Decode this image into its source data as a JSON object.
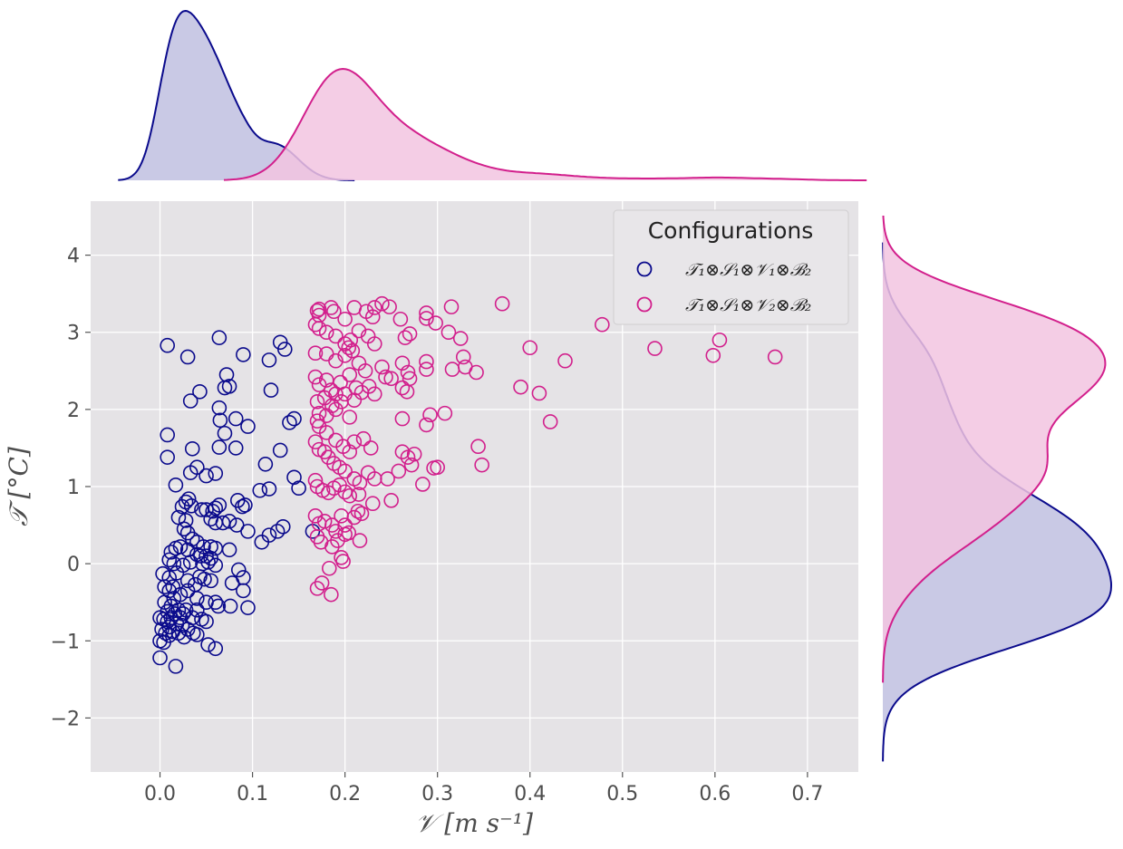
{
  "chart_data": {
    "type": "scatter",
    "xlabel": "𝒱 [m s⁻¹]",
    "ylabel": "𝒯 [°C]",
    "xlim": [
      -0.075,
      0.755
    ],
    "ylim": [
      -2.7,
      4.7
    ],
    "x_ticks": [
      0.0,
      0.1,
      0.2,
      0.3,
      0.4,
      0.5,
      0.6,
      0.7
    ],
    "x_tick_labels": [
      "0.0",
      "0.1",
      "0.2",
      "0.3",
      "0.4",
      "0.5",
      "0.6",
      "0.7"
    ],
    "y_ticks": [
      -2,
      -1,
      0,
      1,
      2,
      3,
      4
    ],
    "y_tick_labels": [
      "−2",
      "−1",
      "0",
      "1",
      "2",
      "3",
      "4"
    ],
    "grid": true,
    "legend": {
      "title": "Configurations",
      "placement": "top-right",
      "entries": [
        "𝒯₁⊗𝒮₁⊗𝒱₁⊗ℬ₂",
        "𝒯₁⊗𝒮₁⊗𝒱₂⊗ℬ₂"
      ]
    },
    "marginals": {
      "top": "kde of 𝒱 per series",
      "right": "kde of 𝒯 per series"
    },
    "series": [
      {
        "color": "#0a0a8c",
        "fill": "#bfc0e0",
        "points": [
          [
            0.008,
            2.83
          ],
          [
            0.064,
            2.93
          ],
          [
            0.03,
            2.68
          ],
          [
            0.09,
            2.71
          ],
          [
            0.13,
            2.87
          ],
          [
            0.135,
            2.78
          ],
          [
            0.118,
            2.64
          ],
          [
            0.072,
            2.45
          ],
          [
            0.07,
            2.28
          ],
          [
            0.075,
            2.3
          ],
          [
            0.043,
            2.23
          ],
          [
            0.033,
            2.11
          ],
          [
            0.12,
            2.25
          ],
          [
            0.064,
            2.02
          ],
          [
            0.065,
            1.86
          ],
          [
            0.082,
            1.88
          ],
          [
            0.14,
            1.83
          ],
          [
            0.145,
            1.88
          ],
          [
            0.008,
            1.67
          ],
          [
            0.07,
            1.69
          ],
          [
            0.095,
            1.78
          ],
          [
            0.035,
            1.49
          ],
          [
            0.064,
            1.51
          ],
          [
            0.082,
            1.5
          ],
          [
            0.13,
            1.47
          ],
          [
            0.008,
            1.38
          ],
          [
            0.04,
            1.25
          ],
          [
            0.114,
            1.29
          ],
          [
            0.033,
            1.18
          ],
          [
            0.05,
            1.14
          ],
          [
            0.06,
            1.17
          ],
          [
            0.145,
            1.12
          ],
          [
            0.15,
            0.98
          ],
          [
            0.118,
            0.97
          ],
          [
            0.108,
            0.95
          ],
          [
            0.017,
            1.02
          ],
          [
            0.028,
            0.8
          ],
          [
            0.031,
            0.84
          ],
          [
            0.024,
            0.74
          ],
          [
            0.034,
            0.75
          ],
          [
            0.06,
            0.72
          ],
          [
            0.064,
            0.76
          ],
          [
            0.084,
            0.82
          ],
          [
            0.089,
            0.74
          ],
          [
            0.092,
            0.76
          ],
          [
            0.045,
            0.7
          ],
          [
            0.05,
            0.7
          ],
          [
            0.057,
            0.68
          ],
          [
            0.02,
            0.6
          ],
          [
            0.028,
            0.56
          ],
          [
            0.055,
            0.58
          ],
          [
            0.06,
            0.53
          ],
          [
            0.068,
            0.53
          ],
          [
            0.075,
            0.55
          ],
          [
            0.083,
            0.5
          ],
          [
            0.095,
            0.42
          ],
          [
            0.11,
            0.28
          ],
          [
            0.118,
            0.37
          ],
          [
            0.127,
            0.42
          ],
          [
            0.133,
            0.48
          ],
          [
            0.165,
            0.42
          ],
          [
            0.026,
            0.45
          ],
          [
            0.03,
            0.4
          ],
          [
            0.035,
            0.32
          ],
          [
            0.04,
            0.28
          ],
          [
            0.047,
            0.22
          ],
          [
            0.055,
            0.22
          ],
          [
            0.06,
            0.2
          ],
          [
            0.075,
            0.18
          ],
          [
            0.012,
            0.15
          ],
          [
            0.017,
            0.2
          ],
          [
            0.022,
            0.22
          ],
          [
            0.03,
            0.18
          ],
          [
            0.04,
            0.12
          ],
          [
            0.044,
            0.1
          ],
          [
            0.05,
            0.1
          ],
          [
            0.055,
            0.07
          ],
          [
            0.01,
            0.05
          ],
          [
            0.015,
            0.0
          ],
          [
            0.025,
            -0.02
          ],
          [
            0.033,
            0.02
          ],
          [
            0.046,
            0.0
          ],
          [
            0.052,
            0.02
          ],
          [
            0.06,
            -0.02
          ],
          [
            0.003,
            -0.13
          ],
          [
            0.01,
            -0.18
          ],
          [
            0.018,
            -0.12
          ],
          [
            0.03,
            -0.22
          ],
          [
            0.038,
            -0.27
          ],
          [
            0.043,
            -0.17
          ],
          [
            0.048,
            -0.2
          ],
          [
            0.055,
            -0.22
          ],
          [
            0.085,
            -0.08
          ],
          [
            0.09,
            -0.18
          ],
          [
            0.078,
            -0.25
          ],
          [
            0.09,
            -0.35
          ],
          [
            0.005,
            -0.3
          ],
          [
            0.01,
            -0.35
          ],
          [
            0.015,
            -0.45
          ],
          [
            0.022,
            -0.4
          ],
          [
            0.03,
            -0.35
          ],
          [
            0.04,
            -0.45
          ],
          [
            0.05,
            -0.5
          ],
          [
            0.06,
            -0.5
          ],
          [
            0.063,
            -0.55
          ],
          [
            0.076,
            -0.55
          ],
          [
            0.095,
            -0.57
          ],
          [
            0.005,
            -0.5
          ],
          [
            0.012,
            -0.55
          ],
          [
            0.02,
            -0.6
          ],
          [
            0.025,
            -0.65
          ],
          [
            0.035,
            -0.7
          ],
          [
            0.045,
            -0.72
          ],
          [
            0.05,
            -0.75
          ],
          [
            0.0,
            -0.7
          ],
          [
            0.004,
            -0.72
          ],
          [
            0.008,
            -0.75
          ],
          [
            0.012,
            -0.7
          ],
          [
            0.016,
            -0.65
          ],
          [
            0.018,
            -0.78
          ],
          [
            0.024,
            -0.8
          ],
          [
            0.03,
            -0.85
          ],
          [
            0.036,
            -0.9
          ],
          [
            0.04,
            -0.92
          ],
          [
            0.002,
            -0.85
          ],
          [
            0.006,
            -0.9
          ],
          [
            0.01,
            -0.93
          ],
          [
            0.014,
            -0.88
          ],
          [
            0.02,
            -0.9
          ],
          [
            0.0,
            -1.0
          ],
          [
            0.004,
            -1.02
          ],
          [
            0.052,
            -1.05
          ],
          [
            0.06,
            -1.1
          ],
          [
            0.0,
            -1.22
          ],
          [
            0.017,
            -1.33
          ],
          [
            0.026,
            -0.95
          ],
          [
            0.01,
            -0.82
          ],
          [
            0.022,
            -0.7
          ],
          [
            0.028,
            -0.6
          ],
          [
            0.014,
            -0.3
          ],
          [
            0.04,
            -0.6
          ],
          [
            0.008,
            -0.62
          ]
        ]
      },
      {
        "color": "#d21f8c",
        "fill": "#f2c4e0",
        "points": [
          [
            0.172,
            3.3
          ],
          [
            0.17,
            3.28
          ],
          [
            0.172,
            3.22
          ],
          [
            0.185,
            3.32
          ],
          [
            0.188,
            3.27
          ],
          [
            0.2,
            3.17
          ],
          [
            0.21,
            3.32
          ],
          [
            0.223,
            3.27
          ],
          [
            0.23,
            3.2
          ],
          [
            0.24,
            3.37
          ],
          [
            0.232,
            3.32
          ],
          [
            0.248,
            3.33
          ],
          [
            0.26,
            3.17
          ],
          [
            0.288,
            3.25
          ],
          [
            0.288,
            3.18
          ],
          [
            0.298,
            3.12
          ],
          [
            0.315,
            3.33
          ],
          [
            0.37,
            3.37
          ],
          [
            0.478,
            3.1
          ],
          [
            0.168,
            3.1
          ],
          [
            0.172,
            3.05
          ],
          [
            0.18,
            3.0
          ],
          [
            0.19,
            2.95
          ],
          [
            0.2,
            2.85
          ],
          [
            0.206,
            2.9
          ],
          [
            0.215,
            3.02
          ],
          [
            0.225,
            2.95
          ],
          [
            0.232,
            2.85
          ],
          [
            0.265,
            2.93
          ],
          [
            0.27,
            2.98
          ],
          [
            0.312,
            3.0
          ],
          [
            0.325,
            2.92
          ],
          [
            0.328,
            2.68
          ],
          [
            0.33,
            2.55
          ],
          [
            0.316,
            2.52
          ],
          [
            0.342,
            2.48
          ],
          [
            0.288,
            2.62
          ],
          [
            0.288,
            2.52
          ],
          [
            0.4,
            2.8
          ],
          [
            0.438,
            2.63
          ],
          [
            0.535,
            2.79
          ],
          [
            0.598,
            2.7
          ],
          [
            0.605,
            2.9
          ],
          [
            0.665,
            2.68
          ],
          [
            0.168,
            2.73
          ],
          [
            0.18,
            2.72
          ],
          [
            0.19,
            2.63
          ],
          [
            0.2,
            2.7
          ],
          [
            0.204,
            2.8
          ],
          [
            0.208,
            2.76
          ],
          [
            0.215,
            2.6
          ],
          [
            0.222,
            2.5
          ],
          [
            0.24,
            2.55
          ],
          [
            0.262,
            2.6
          ],
          [
            0.268,
            2.48
          ],
          [
            0.27,
            2.4
          ],
          [
            0.39,
            2.29
          ],
          [
            0.41,
            2.21
          ],
          [
            0.422,
            1.84
          ],
          [
            0.168,
            2.42
          ],
          [
            0.172,
            2.32
          ],
          [
            0.18,
            2.38
          ],
          [
            0.185,
            2.25
          ],
          [
            0.19,
            2.2
          ],
          [
            0.195,
            2.35
          ],
          [
            0.2,
            2.2
          ],
          [
            0.205,
            2.45
          ],
          [
            0.212,
            2.28
          ],
          [
            0.218,
            2.22
          ],
          [
            0.226,
            2.3
          ],
          [
            0.244,
            2.42
          ],
          [
            0.25,
            2.4
          ],
          [
            0.262,
            2.28
          ],
          [
            0.267,
            2.23
          ],
          [
            0.232,
            2.2
          ],
          [
            0.17,
            2.1
          ],
          [
            0.178,
            2.15
          ],
          [
            0.186,
            2.05
          ],
          [
            0.19,
            2.0
          ],
          [
            0.196,
            2.1
          ],
          [
            0.21,
            2.12
          ],
          [
            0.172,
            1.95
          ],
          [
            0.18,
            1.92
          ],
          [
            0.205,
            1.9
          ],
          [
            0.262,
            1.88
          ],
          [
            0.288,
            1.8
          ],
          [
            0.292,
            1.93
          ],
          [
            0.308,
            1.95
          ],
          [
            0.17,
            1.85
          ],
          [
            0.172,
            1.78
          ],
          [
            0.18,
            1.7
          ],
          [
            0.19,
            1.6
          ],
          [
            0.198,
            1.52
          ],
          [
            0.205,
            1.45
          ],
          [
            0.21,
            1.58
          ],
          [
            0.22,
            1.62
          ],
          [
            0.228,
            1.5
          ],
          [
            0.262,
            1.45
          ],
          [
            0.268,
            1.38
          ],
          [
            0.275,
            1.42
          ],
          [
            0.344,
            1.52
          ],
          [
            0.348,
            1.28
          ],
          [
            0.168,
            1.58
          ],
          [
            0.172,
            1.48
          ],
          [
            0.178,
            1.45
          ],
          [
            0.182,
            1.38
          ],
          [
            0.188,
            1.3
          ],
          [
            0.194,
            1.25
          ],
          [
            0.2,
            1.2
          ],
          [
            0.21,
            1.1
          ],
          [
            0.216,
            1.05
          ],
          [
            0.225,
            1.18
          ],
          [
            0.232,
            1.1
          ],
          [
            0.246,
            1.1
          ],
          [
            0.258,
            1.2
          ],
          [
            0.272,
            1.28
          ],
          [
            0.296,
            1.24
          ],
          [
            0.3,
            1.25
          ],
          [
            0.284,
            1.03
          ],
          [
            0.168,
            1.08
          ],
          [
            0.17,
            1.0
          ],
          [
            0.176,
            0.95
          ],
          [
            0.182,
            0.92
          ],
          [
            0.188,
            0.98
          ],
          [
            0.194,
            1.02
          ],
          [
            0.2,
            0.93
          ],
          [
            0.205,
            0.88
          ],
          [
            0.215,
            0.9
          ],
          [
            0.23,
            0.78
          ],
          [
            0.25,
            0.82
          ],
          [
            0.168,
            0.62
          ],
          [
            0.172,
            0.52
          ],
          [
            0.178,
            0.55
          ],
          [
            0.186,
            0.5
          ],
          [
            0.19,
            0.42
          ],
          [
            0.196,
            0.62
          ],
          [
            0.2,
            0.5
          ],
          [
            0.21,
            0.6
          ],
          [
            0.214,
            0.68
          ],
          [
            0.218,
            0.65
          ],
          [
            0.17,
            0.35
          ],
          [
            0.174,
            0.28
          ],
          [
            0.186,
            0.22
          ],
          [
            0.192,
            0.3
          ],
          [
            0.2,
            0.38
          ],
          [
            0.204,
            0.4
          ],
          [
            0.216,
            0.3
          ],
          [
            0.196,
            0.08
          ],
          [
            0.198,
            0.03
          ],
          [
            0.183,
            -0.06
          ],
          [
            0.175,
            -0.25
          ],
          [
            0.17,
            -0.32
          ],
          [
            0.185,
            -0.4
          ]
        ]
      }
    ]
  }
}
